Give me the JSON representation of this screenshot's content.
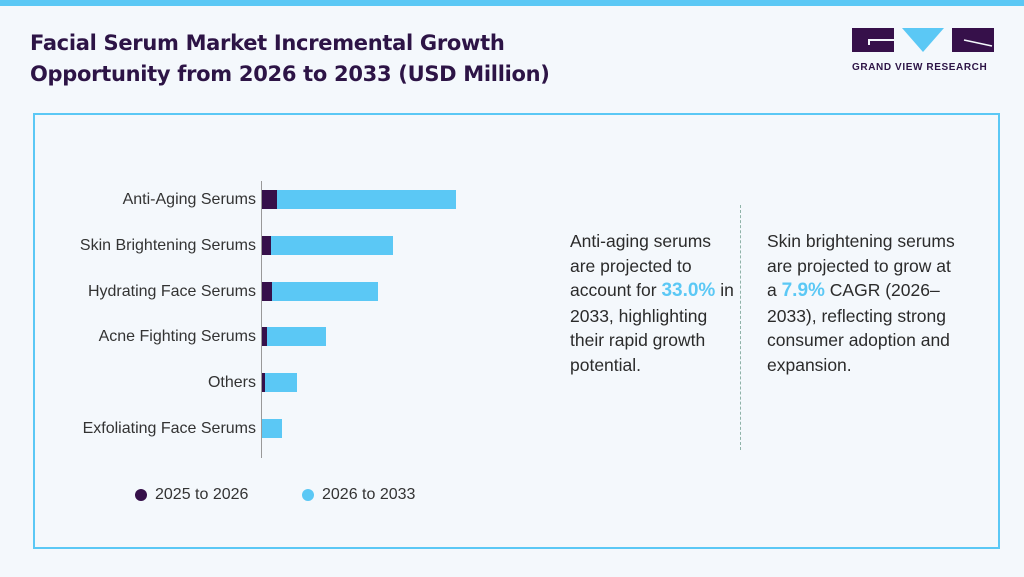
{
  "title_line1": "Facial Serum Market Incremental Growth",
  "title_line2": "Opportunity from 2026 to 2033 (USD Million)",
  "logo_text": "GRAND VIEW RESEARCH",
  "colors": {
    "dark": "#36104a",
    "light": "#5bc8f5"
  },
  "chart_data": {
    "type": "bar",
    "orientation": "horizontal-stacked",
    "categories": [
      "Anti-Aging Serums",
      "Skin Brightening Serums",
      "Hydrating Face Serums",
      "Acne Fighting Serums",
      "Others",
      "Exfoliating Face Serums"
    ],
    "series": [
      {
        "name": "2025 to 2026",
        "values": [
          16,
          10,
          11,
          6,
          4,
          1
        ]
      },
      {
        "name": "2026 to 2033",
        "values": [
          179,
          122,
          106,
          59,
          32,
          20
        ]
      }
    ],
    "value_units": "relative (no axis values shown)",
    "legend": "bottom"
  },
  "notes": [
    {
      "pre": "Anti-aging serums are projected to account for ",
      "highlight": "33.0%",
      "post": " in 2033, highlighting their rapid growth potential."
    },
    {
      "pre": "Skin brightening serums are projected to grow at a ",
      "highlight": "7.9%",
      "post": " CAGR (2026–2033), reflecting strong consumer adoption and expansion."
    }
  ]
}
